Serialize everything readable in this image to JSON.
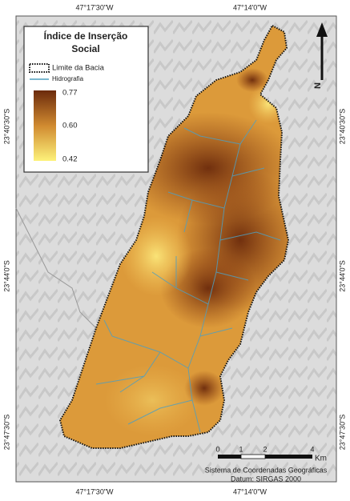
{
  "graticule": {
    "top": [
      "47°17'30\"W",
      "47°14'0\"W"
    ],
    "bottom": [
      "47°17'30\"W",
      "47°14'0\"W"
    ],
    "left": [
      "23°40'30\"S",
      "23°44'0\"S",
      "23°47'30\"S"
    ],
    "right": [
      "23°40'30\"S",
      "23°44'0\"S",
      "23°47'30\"S"
    ]
  },
  "legend": {
    "title_lines": [
      "Índice de Inserção",
      "Social"
    ],
    "boundary": "Limite da Bacia",
    "rivers": "Hidrografia",
    "ramp_labels": [
      "0.77",
      "0.60",
      "0.42"
    ]
  },
  "north": "N",
  "scale_bar": {
    "labels": [
      "0",
      "1",
      "2",
      "4"
    ],
    "unit": "Km"
  },
  "credits": [
    "Sistema de Coordenadas Geográficas",
    "Datum: SIRGAS 2000"
  ]
}
